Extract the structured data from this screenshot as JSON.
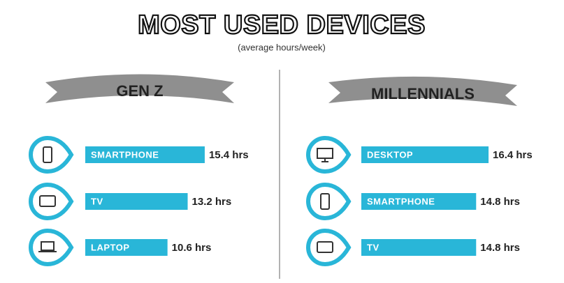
{
  "title": "MOST USED DEVICES",
  "subtitle": "(average hours/week)",
  "chart_data": [
    {
      "type": "bar",
      "orientation": "horizontal",
      "title": "GEN Z",
      "categories": [
        "SMARTPHONE",
        "TV",
        "LAPTOP"
      ],
      "values": [
        15.4,
        13.2,
        10.6
      ],
      "value_labels": [
        "15.4 hrs",
        "13.2 hrs",
        "10.6 hrs"
      ],
      "color": "#29b6d8"
    },
    {
      "type": "bar",
      "orientation": "horizontal",
      "title": "MILLENNIALS",
      "categories": [
        "DESKTOP",
        "SMARTPHONE",
        "TV"
      ],
      "values": [
        16.4,
        14.8,
        14.8
      ],
      "value_labels": [
        "16.4 hrs",
        "14.8 hrs",
        "14.8 hrs"
      ],
      "color": "#29b6d8"
    }
  ]
}
